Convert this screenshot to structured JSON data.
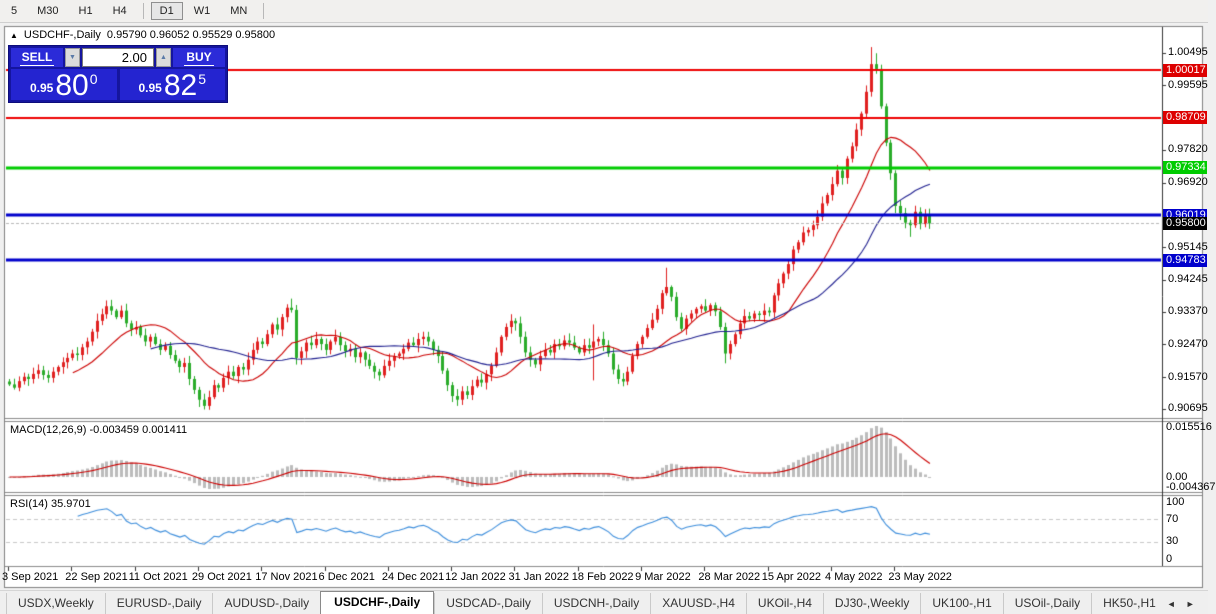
{
  "toolbar": {
    "items": [
      "5",
      "M30",
      "H1",
      "H4",
      "|",
      "D1",
      "W1",
      "MN",
      "|"
    ],
    "active": "D1"
  },
  "chart": {
    "collapse_icon": "▲",
    "symbol_title": "USDCHF-,Daily",
    "ohlc": "0.95790 0.96052 0.95529 0.95800"
  },
  "trade_panel": {
    "sell_label": "SELL",
    "buy_label": "BUY",
    "volume": "2.00",
    "spin_down": "▼",
    "spin_up": "▲",
    "sell_price": {
      "main": "0.95",
      "big": "80",
      "sup": "0"
    },
    "buy_price": {
      "main": "0.95",
      "big": "82",
      "sup": "5"
    }
  },
  "price_axis": {
    "gridlines": [
      "1.00495",
      "0.99595",
      "0.97820",
      "0.96920",
      "0.95145",
      "0.94245",
      "0.93370",
      "0.92470",
      "0.91570",
      "0.90695"
    ],
    "badges": [
      {
        "text": "1.00017",
        "color": "#dd0000"
      },
      {
        "text": "0.98709",
        "color": "#dd0000"
      },
      {
        "text": "0.97334",
        "color": "#00cc00"
      },
      {
        "text": "0.96019",
        "color": "#0000cc"
      },
      {
        "text": "0.95800",
        "color": "#000000"
      },
      {
        "text": "0.94783",
        "color": "#0000cc"
      }
    ]
  },
  "time_axis": {
    "labels": [
      "3 Sep 2021",
      "22 Sep 2021",
      "11 Oct 2021",
      "29 Oct 2021",
      "17 Nov 2021",
      "6 Dec 2021",
      "24 Dec 2021",
      "12 Jan 2022",
      "31 Jan 2022",
      "18 Feb 2022",
      "9 Mar 2022",
      "28 Mar 2022",
      "15 Apr 2022",
      "4 May 2022",
      "23 May 2022"
    ]
  },
  "indicators": {
    "macd": {
      "label": "MACD(12,26,9)",
      "values": "-0.003459 0.001411",
      "axis_max": "0.015516",
      "axis_zero": "0.00",
      "axis_min": "-0.004367"
    },
    "rsi": {
      "label": "RSI(14)",
      "value": "35.9701",
      "axis": [
        "100",
        "70",
        "30",
        "0"
      ],
      "levels": [
        70,
        30
      ]
    }
  },
  "tabs": {
    "items": [
      "USDX,Weekly",
      "EURUSD-,Daily",
      "AUDUSD-,Daily",
      "USDCHF-,Daily",
      "USDCAD-,Daily",
      "USDCNH-,Daily",
      "XAUUSD-,H4",
      "UKOil-,H4",
      "DJ30-,Weekly",
      "UK100-,H1",
      "USOil-,Daily",
      "HK50-,H1"
    ],
    "active_index": 3,
    "scroll_left": "◄",
    "scroll_right": "►"
  },
  "chart_data": {
    "type": "candlestick",
    "symbol": "USDCHF-",
    "timeframe": "Daily",
    "current_bid": 0.958,
    "current_ask": 0.95825,
    "hlines": [
      {
        "price": 1.00017,
        "color": "#ee0000",
        "w": 2
      },
      {
        "price": 0.98709,
        "color": "#ee0000",
        "w": 2
      },
      {
        "price": 0.97334,
        "color": "#00cc00",
        "w": 3
      },
      {
        "price": 0.96019,
        "color": "#0000cc",
        "w": 3
      },
      {
        "price": 0.94783,
        "color": "#0000cc",
        "w": 3
      }
    ],
    "first_open": 0.9145,
    "closes": [
      0.9137,
      0.9128,
      0.9146,
      0.9158,
      0.9152,
      0.9166,
      0.9176,
      0.9163,
      0.9155,
      0.9172,
      0.9185,
      0.9198,
      0.921,
      0.9222,
      0.9218,
      0.9239,
      0.9255,
      0.9282,
      0.9312,
      0.933,
      0.9352,
      0.934,
      0.9322,
      0.934,
      0.9305,
      0.9288,
      0.9295,
      0.9272,
      0.9255,
      0.9268,
      0.9248,
      0.9232,
      0.9243,
      0.9218,
      0.9202,
      0.9185,
      0.9196,
      0.9152,
      0.9122,
      0.9095,
      0.9078,
      0.9102,
      0.9135,
      0.9128,
      0.9155,
      0.9172,
      0.916,
      0.9185,
      0.9178,
      0.9205,
      0.9232,
      0.9255,
      0.9248,
      0.9275,
      0.9302,
      0.9288,
      0.9322,
      0.9348,
      0.9342,
      0.921,
      0.9228,
      0.9252,
      0.9245,
      0.9262,
      0.9248,
      0.9232,
      0.9255,
      0.9268,
      0.9245,
      0.9228,
      0.9235,
      0.9212,
      0.9225,
      0.9205,
      0.9188,
      0.9172,
      0.9162,
      0.9188,
      0.9202,
      0.9215,
      0.9222,
      0.9235,
      0.9252,
      0.9245,
      0.9262,
      0.9268,
      0.9255,
      0.9232,
      0.9215,
      0.9175,
      0.9135,
      0.9105,
      0.9095,
      0.9118,
      0.9108,
      0.9132,
      0.915,
      0.9142,
      0.9165,
      0.9188,
      0.9225,
      0.9268,
      0.9295,
      0.9312,
      0.9305,
      0.9268,
      0.9225,
      0.9205,
      0.9192,
      0.9215,
      0.9232,
      0.9225,
      0.9248,
      0.9242,
      0.9258,
      0.9252,
      0.9238,
      0.9225,
      0.9245,
      0.9238,
      0.9255,
      0.9262,
      0.9245,
      0.9222,
      0.9178,
      0.9152,
      0.9145,
      0.9172,
      0.9215,
      0.9248,
      0.9268,
      0.9292,
      0.9315,
      0.9345,
      0.9388,
      0.9405,
      0.9378,
      0.9322,
      0.929,
      0.9318,
      0.9332,
      0.9345,
      0.9352,
      0.934,
      0.9355,
      0.9338,
      0.9295,
      0.9222,
      0.9248,
      0.9275,
      0.9305,
      0.9325,
      0.9318,
      0.9332,
      0.9328,
      0.934,
      0.9335,
      0.9382,
      0.9415,
      0.9442,
      0.9468,
      0.9508,
      0.9528,
      0.9555,
      0.9562,
      0.9575,
      0.9598,
      0.9635,
      0.9658,
      0.9688,
      0.9725,
      0.9705,
      0.9758,
      0.9792,
      0.9838,
      0.9882,
      0.9942,
      1.0018,
      1.0005,
      0.9902,
      0.9802,
      0.9718,
      0.9628,
      0.9608,
      0.9582,
      0.9575,
      0.9612,
      0.9578,
      0.9605,
      0.958
    ],
    "wick_overrides": {
      "20": {
        "h": 0.9368
      },
      "39": {
        "l": 0.9075
      },
      "40": {
        "l": 0.9068
      },
      "58": {
        "h": 0.9373
      },
      "92": {
        "l": 0.9078
      },
      "120": {
        "h": 0.9302,
        "l": 0.9148
      },
      "135": {
        "h": 0.9458
      },
      "147": {
        "l": 0.9195
      },
      "177": {
        "h": 1.0065
      },
      "178": {
        "h": 1.0048
      },
      "185": {
        "l": 0.9543
      }
    },
    "ma_fast_period": 14,
    "ma_slow_period": 30,
    "colors": {
      "bull": "#e02020",
      "bear": "#2aac2a",
      "ma_fast": "#cc0000",
      "ma_slow": "#202090",
      "macd_hist": "#bcbcbc",
      "macd_signal": "#cc0000",
      "rsi": "#3d8edc",
      "bid_line": "#b8b8b8"
    }
  }
}
